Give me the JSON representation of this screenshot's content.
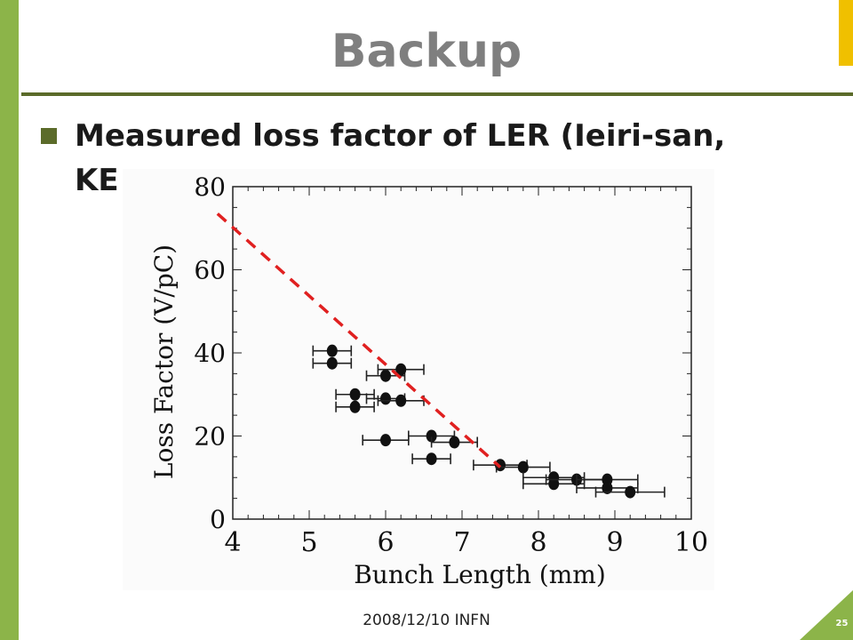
{
  "slide": {
    "title": "Backup",
    "bullet": "Measured loss factor of LER (Ieiri-san, KE",
    "footer": "2008/12/10 INFN",
    "page_number": "25",
    "colors": {
      "sidebar": "#8cb449",
      "accent": "#f0c000",
      "rule": "#5b6b2a",
      "title": "#7f7f7f",
      "fit_line": "#e02020"
    }
  },
  "chart_data": {
    "type": "scatter",
    "xlabel": "Bunch Length (mm)",
    "ylabel": "Loss Factor (V/pC)",
    "xlim": [
      4,
      10
    ],
    "ylim": [
      0,
      80
    ],
    "xticks": [
      "4",
      "5",
      "6",
      "7",
      "8",
      "9",
      "10"
    ],
    "yticks": [
      "0",
      "20",
      "40",
      "60",
      "80"
    ],
    "grid": false,
    "series": [
      {
        "points": [
          {
            "x": 5.3,
            "y": 40.5,
            "xerr": 0.25
          },
          {
            "x": 5.3,
            "y": 37.5,
            "xerr": 0.25
          },
          {
            "x": 5.6,
            "y": 30.0,
            "xerr": 0.25
          },
          {
            "x": 5.6,
            "y": 27.0,
            "xerr": 0.25
          },
          {
            "x": 6.0,
            "y": 34.5,
            "xerr": 0.25
          },
          {
            "x": 6.2,
            "y": 36.0,
            "xerr": 0.3
          },
          {
            "x": 6.0,
            "y": 29.0,
            "xerr": 0.25
          },
          {
            "x": 6.2,
            "y": 28.5,
            "xerr": 0.3
          },
          {
            "x": 6.0,
            "y": 19.0,
            "xerr": 0.3
          },
          {
            "x": 6.6,
            "y": 20.0,
            "xerr": 0.3
          },
          {
            "x": 6.9,
            "y": 18.5,
            "xerr": 0.3
          },
          {
            "x": 6.6,
            "y": 14.5,
            "xerr": 0.25
          },
          {
            "x": 7.5,
            "y": 13.0,
            "xerr": 0.35
          },
          {
            "x": 7.8,
            "y": 12.5,
            "xerr": 0.35
          },
          {
            "x": 8.2,
            "y": 10.0,
            "xerr": 0.4
          },
          {
            "x": 8.2,
            "y": 8.5,
            "xerr": 0.4
          },
          {
            "x": 8.5,
            "y": 9.5,
            "xerr": 0.4
          },
          {
            "x": 8.9,
            "y": 9.5,
            "xerr": 0.4
          },
          {
            "x": 8.9,
            "y": 7.5,
            "xerr": 0.4
          },
          {
            "x": 9.2,
            "y": 6.5,
            "xerr": 0.45
          }
        ]
      }
    ],
    "fit_line": {
      "style": "dashed",
      "color": "#e02020",
      "x": [
        3.8,
        7.5
      ],
      "y": [
        73.5,
        12.5
      ]
    }
  }
}
